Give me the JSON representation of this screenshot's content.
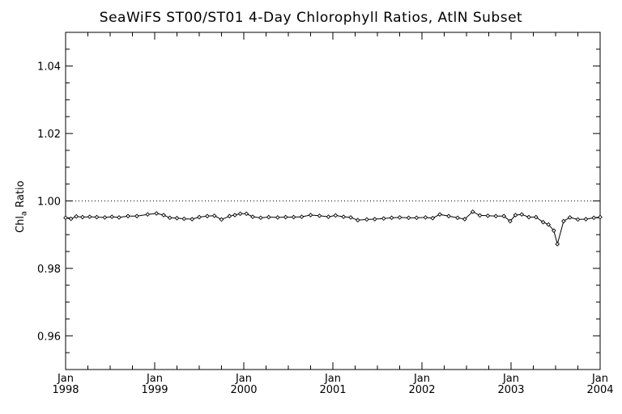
{
  "chart_data": {
    "type": "line",
    "title": "SeaWiFS ST00/ST01 4-Day Chlorophyll Ratios, AtlN Subset",
    "ylabel": "Chl",
    "ylabel_sub": "a",
    "ylabel_suffix": " Ratio",
    "xlabel": "",
    "ylim": [
      0.95,
      1.05
    ],
    "xlim": [
      1998.0,
      2004.0
    ],
    "y_ticks": [
      {
        "value": 0.96,
        "label": "0.96"
      },
      {
        "value": 0.98,
        "label": "0.98"
      },
      {
        "value": 1.0,
        "label": "1.00"
      },
      {
        "value": 1.02,
        "label": "1.02"
      },
      {
        "value": 1.04,
        "label": "1.04"
      }
    ],
    "x_ticks": [
      {
        "value": 1998.0,
        "month": "Jan",
        "year": "1998"
      },
      {
        "value": 1999.0,
        "month": "Jan",
        "year": "1999"
      },
      {
        "value": 2000.0,
        "month": "Jan",
        "year": "2000"
      },
      {
        "value": 2001.0,
        "month": "Jan",
        "year": "2001"
      },
      {
        "value": 2002.0,
        "month": "Jan",
        "year": "2002"
      },
      {
        "value": 2003.0,
        "month": "Jan",
        "year": "2003"
      },
      {
        "value": 2004.0,
        "month": "Jan",
        "year": "2004"
      }
    ],
    "reference_line": 1.0,
    "series": [
      {
        "x": [
          1998.0,
          1998.06,
          1998.12,
          1998.19,
          1998.27,
          1998.35,
          1998.44,
          1998.52,
          1998.6,
          1998.7,
          1998.8,
          1998.92,
          1999.02,
          1999.1,
          1999.17,
          1999.25,
          1999.33,
          1999.42,
          1999.5,
          1999.59,
          1999.67,
          1999.75,
          1999.84,
          1999.9,
          1999.96,
          2000.03,
          2000.1,
          2000.19,
          2000.28,
          2000.38,
          2000.47,
          2000.56,
          2000.65,
          2000.75,
          2000.85,
          2000.95,
          2001.03,
          2001.12,
          2001.2,
          2001.28,
          2001.38,
          2001.47,
          2001.57,
          2001.66,
          2001.75,
          2001.85,
          2001.94,
          2002.04,
          2002.12,
          2002.2,
          2002.3,
          2002.4,
          2002.48,
          2002.57,
          2002.65,
          2002.74,
          2002.83,
          2002.92,
          2002.99,
          2003.05,
          2003.12,
          2003.2,
          2003.28,
          2003.36,
          2003.42,
          2003.48,
          2003.52,
          2003.59,
          2003.66,
          2003.75,
          2003.84,
          2003.93,
          2004.0
        ],
        "y": [
          0.995,
          0.9947,
          0.9954,
          0.9952,
          0.9953,
          0.9952,
          0.9951,
          0.9953,
          0.9951,
          0.9955,
          0.9955,
          0.996,
          0.9963,
          0.9958,
          0.995,
          0.9949,
          0.9947,
          0.9946,
          0.9952,
          0.9955,
          0.9956,
          0.9945,
          0.9955,
          0.9958,
          0.9962,
          0.9962,
          0.9953,
          0.995,
          0.9952,
          0.9951,
          0.9952,
          0.9952,
          0.9953,
          0.9958,
          0.9956,
          0.9953,
          0.9957,
          0.9953,
          0.9951,
          0.9943,
          0.9945,
          0.9946,
          0.9948,
          0.995,
          0.9951,
          0.995,
          0.995,
          0.9951,
          0.9949,
          0.996,
          0.9955,
          0.995,
          0.9946,
          0.9968,
          0.9957,
          0.9956,
          0.9955,
          0.9955,
          0.994,
          0.9958,
          0.996,
          0.9952,
          0.9952,
          0.9937,
          0.993,
          0.9912,
          0.9872,
          0.994,
          0.9951,
          0.9945,
          0.9946,
          0.995,
          0.9952
        ]
      }
    ]
  }
}
